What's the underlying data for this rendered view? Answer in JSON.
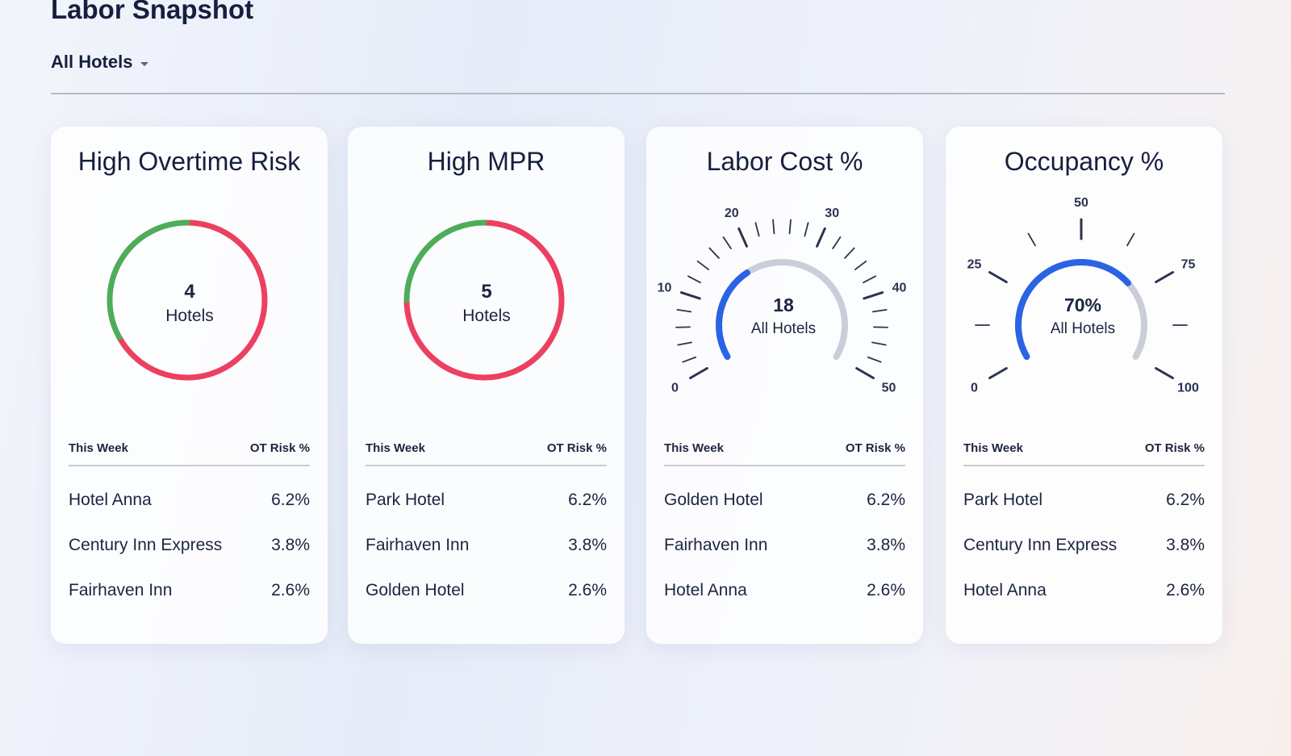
{
  "header": {
    "title": "Labor Snapshot",
    "filter_label": "All Hotels"
  },
  "cards": [
    {
      "title": "High Overtime Risk",
      "gauge": {
        "type": "ring",
        "value": "4",
        "caption": "Hotels",
        "good_fraction": 0.33,
        "good_color": "#4fac5a",
        "bad_color": "#ec4060"
      },
      "table": {
        "col1": "This Week",
        "col2": "OT Risk %",
        "rows": [
          {
            "name": "Hotel Anna",
            "value": "6.2%"
          },
          {
            "name": "Century Inn Express",
            "value": "3.8%"
          },
          {
            "name": "Fairhaven Inn",
            "value": "2.6%"
          }
        ]
      }
    },
    {
      "title": "High MPR",
      "gauge": {
        "type": "ring",
        "value": "5",
        "caption": "Hotels",
        "good_fraction": 0.25,
        "good_color": "#4fac5a",
        "bad_color": "#ec4060"
      },
      "table": {
        "col1": "This Week",
        "col2": "OT Risk %",
        "rows": [
          {
            "name": "Park Hotel",
            "value": "6.2%"
          },
          {
            "name": "Fairhaven Inn",
            "value": "3.8%"
          },
          {
            "name": "Golden Hotel",
            "value": "2.6%"
          }
        ]
      }
    },
    {
      "title": "Labor Cost %",
      "gauge": {
        "type": "dial",
        "value": "18",
        "caption": "All Hotels",
        "level": 18,
        "min": 0,
        "max": 50,
        "tick_labels": [
          "0",
          "10",
          "20",
          "30",
          "40",
          "50"
        ],
        "fill_color": "#2b63e6",
        "track_color": "#c9ced8"
      },
      "table": {
        "col1": "This Week",
        "col2": "OT Risk %",
        "rows": [
          {
            "name": "Golden Hotel",
            "value": "6.2%"
          },
          {
            "name": "Fairhaven Inn",
            "value": "3.8%"
          },
          {
            "name": "Hotel Anna",
            "value": "2.6%"
          }
        ]
      }
    },
    {
      "title": "Occupancy %",
      "gauge": {
        "type": "dial",
        "value": "70%",
        "caption": "All Hotels",
        "level": 70,
        "min": 0,
        "max": 100,
        "tick_labels": [
          "0",
          "25",
          "50",
          "75",
          "100"
        ],
        "fill_color": "#2b63e6",
        "track_color": "#c9ced8"
      },
      "table": {
        "col1": "This Week",
        "col2": "OT Risk %",
        "rows": [
          {
            "name": "Park Hotel",
            "value": "6.2%"
          },
          {
            "name": "Century Inn Express",
            "value": "3.8%"
          },
          {
            "name": "Hotel Anna",
            "value": "2.6%"
          }
        ]
      }
    }
  ]
}
